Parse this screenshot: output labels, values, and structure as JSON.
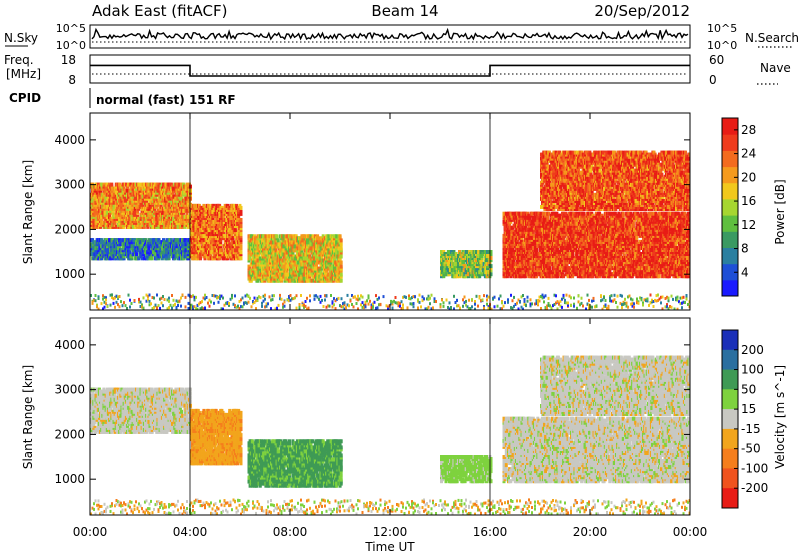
{
  "header": {
    "station": "Adak East (fitACF)",
    "beam": "Beam 14",
    "date": "20/Sep/2012"
  },
  "status_panel": {
    "nsky_label": "N.Sky",
    "nsky_ticks": [
      "10^5",
      "10^0"
    ],
    "nsearch_label": "N.Search",
    "nsearch_ticks": [
      "10^5",
      "10^0"
    ],
    "freq_label_1": "Freq.",
    "freq_label_2": "[MHz]",
    "freq_ticks": [
      "18",
      "8"
    ],
    "nave_label": "Nave",
    "nave_ticks": [
      "60",
      "0"
    ],
    "cpid_label": "CPID",
    "cpid_value": "normal (fast) 151 RF",
    "freq_steps": [
      {
        "start_h": 0.0,
        "end_h": 4.0,
        "freq_mhz": 14.3
      },
      {
        "start_h": 4.0,
        "end_h": 16.0,
        "freq_mhz": 10.5
      },
      {
        "start_h": 16.0,
        "end_h": 24.0,
        "freq_mhz": 14.3
      }
    ],
    "nave_level": 10
  },
  "chart_data": [
    {
      "type": "heatmap",
      "title": "Power",
      "xlabel": "Time UT",
      "ylabel": "Slant Range [km]",
      "x_ticks": [
        "00:00",
        "04:00",
        "08:00",
        "12:00",
        "16:00",
        "20:00",
        "00:00"
      ],
      "xlim_hours": [
        0,
        24
      ],
      "y_ticks": [
        "1000",
        "2000",
        "3000",
        "4000"
      ],
      "ylim_km": [
        200,
        4600
      ],
      "colorbar": {
        "label": "Power [dB]",
        "ticks": [
          "4",
          "8",
          "12",
          "16",
          "20",
          "24",
          "28"
        ],
        "range": [
          0,
          30
        ],
        "colors": [
          "#1a1aff",
          "#1e4fd6",
          "#2a7fa0",
          "#3a9a62",
          "#5fbf3f",
          "#a6d630",
          "#f2c81c",
          "#f59a1c",
          "#f36b1e",
          "#ef3b1d",
          "#e81c16"
        ]
      },
      "regions": [
        {
          "t0": 0.0,
          "t1": 4.0,
          "r0": 2100,
          "r1": 3050,
          "db": 22
        },
        {
          "t0": 0.0,
          "t1": 4.0,
          "r0": 1400,
          "r1": 1850,
          "db": 6
        },
        {
          "t0": 4.0,
          "t1": 6.0,
          "r0": 1400,
          "r1": 2600,
          "db": 24
        },
        {
          "t0": 6.3,
          "t1": 10.0,
          "r0": 900,
          "r1": 1900,
          "db": 18
        },
        {
          "t0": 14.0,
          "t1": 16.0,
          "r0": 1000,
          "r1": 1550,
          "db": 14
        },
        {
          "t0": 16.5,
          "t1": 24.0,
          "r0": 1000,
          "r1": 2400,
          "db": 28
        },
        {
          "t0": 18.0,
          "t1": 24.0,
          "r0": 2500,
          "r1": 3800,
          "db": 26
        }
      ]
    },
    {
      "type": "heatmap",
      "title": "Velocity",
      "xlabel": "Time UT",
      "ylabel": "Slant Range [km]",
      "x_ticks": [
        "00:00",
        "04:00",
        "08:00",
        "12:00",
        "16:00",
        "20:00",
        "00:00"
      ],
      "xlim_hours": [
        0,
        24
      ],
      "y_ticks": [
        "1000",
        "2000",
        "3000",
        "4000"
      ],
      "ylim_km": [
        200,
        4600
      ],
      "colorbar": {
        "label": "Velocity [m s^-1]",
        "ticks": [
          "200",
          "100",
          "50",
          "15",
          "-15",
          "-50",
          "-100",
          "-200"
        ],
        "colors": [
          "#1a2fb8",
          "#2a6fa0",
          "#3f9a55",
          "#7ed23e",
          "#c8c8c2",
          "#f2a51c",
          "#f57e1c",
          "#f0531e",
          "#e81c16"
        ]
      },
      "regions": [
        {
          "t0": 0.0,
          "t1": 4.0,
          "r0": 2100,
          "r1": 3050,
          "v": 0
        },
        {
          "t0": 4.0,
          "t1": 6.0,
          "r0": 1400,
          "r1": 2600,
          "v": -40
        },
        {
          "t0": 6.3,
          "t1": 10.0,
          "r0": 900,
          "r1": 1900,
          "v": 60
        },
        {
          "t0": 14.0,
          "t1": 16.0,
          "r0": 1000,
          "r1": 1550,
          "v": 30
        },
        {
          "t0": 16.5,
          "t1": 24.0,
          "r0": 1000,
          "r1": 2400,
          "v": 0
        },
        {
          "t0": 18.0,
          "t1": 24.0,
          "r0": 2500,
          "r1": 3800,
          "v": 0
        }
      ]
    }
  ]
}
